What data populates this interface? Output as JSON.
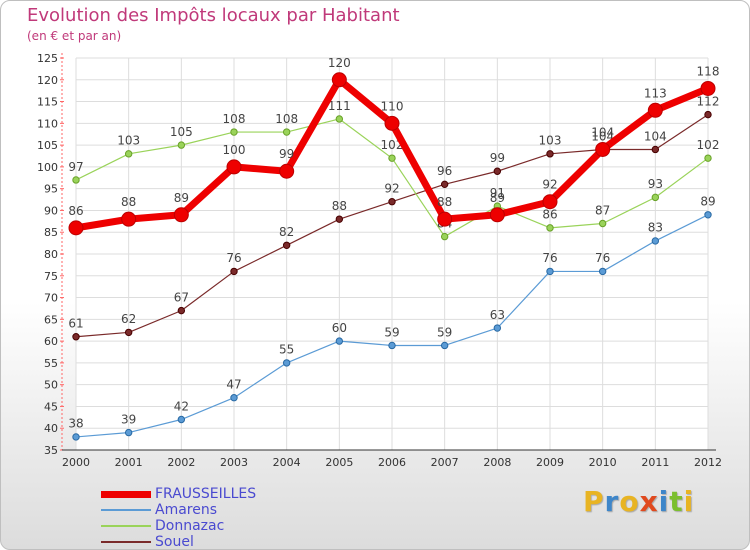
{
  "chart_data": {
    "type": "line",
    "title": "Evolution des Impôts locaux par Habitant",
    "subtitle": "(en € et par an)",
    "x": [
      "2000",
      "2001",
      "2002",
      "2003",
      "2004",
      "2005",
      "2006",
      "2007",
      "2008",
      "2009",
      "2010",
      "2011",
      "2012"
    ],
    "ylim": [
      35,
      125
    ],
    "yticks": [
      35,
      40,
      45,
      50,
      55,
      60,
      65,
      70,
      75,
      80,
      85,
      90,
      95,
      100,
      105,
      110,
      115,
      120,
      125
    ],
    "grid": true,
    "legend_position": "bottom-left",
    "series": [
      {
        "name": "Souel",
        "color": "#7a2a2a",
        "values": [
          61,
          62,
          67,
          76,
          82,
          88,
          92,
          96,
          99,
          103,
          104,
          104,
          112
        ]
      },
      {
        "name": "Donnazac",
        "color": "#9ad35a",
        "values": [
          97,
          103,
          105,
          108,
          108,
          111,
          102,
          84,
          91,
          86,
          87,
          93,
          102
        ]
      },
      {
        "name": "Amarens",
        "color": "#5b9bd5",
        "values": [
          38,
          39,
          42,
          47,
          55,
          60,
          59,
          59,
          63,
          76,
          76,
          83,
          89
        ]
      },
      {
        "name": "FRAUSSEILLES",
        "color": "#ee0000",
        "values": [
          86,
          88,
          89,
          100,
          99,
          120,
          110,
          88,
          89,
          92,
          104,
          113,
          118
        ]
      }
    ],
    "legend": [
      "FRAUSSEILLES",
      "Amarens",
      "Donnazac",
      "Souel"
    ]
  },
  "logo": {
    "text": "Proxiti",
    "colors": [
      "#e8b423",
      "#3e86c9",
      "#e8b423",
      "#e0491e",
      "#3e86c9",
      "#7cbf2e",
      "#e8b423"
    ]
  }
}
